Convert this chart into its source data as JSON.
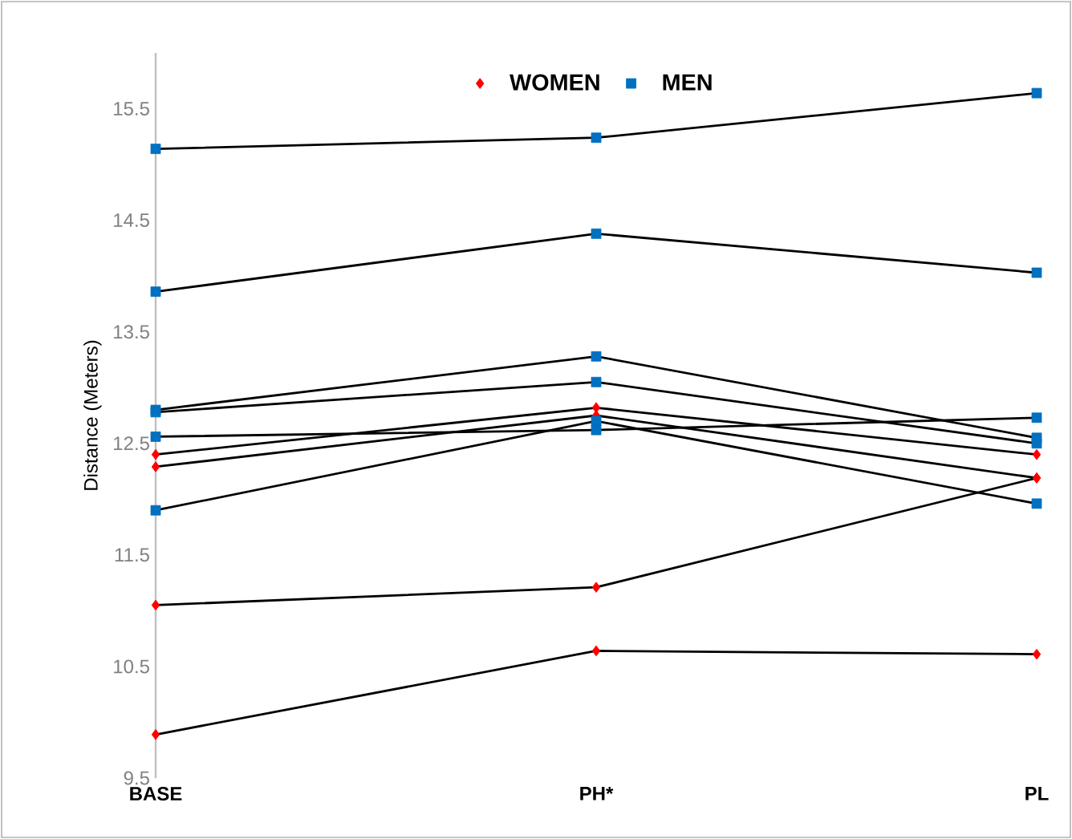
{
  "chart_data": {
    "type": "line",
    "ylabel": "Distance (Meters)",
    "categories": [
      "BASE",
      "PH*",
      "PL"
    ],
    "ylim": [
      9.5,
      16
    ],
    "yticks": [
      9.5,
      10.5,
      11.5,
      12.5,
      13.5,
      14.5,
      15.5
    ],
    "grid": false,
    "legend": "top",
    "series": [
      {
        "name": "WOMEN",
        "color": "#ff0000",
        "marker": "diamond",
        "values": [
          12.4,
          12.82,
          12.4
        ]
      },
      {
        "color": "#ff0000",
        "marker": "diamond",
        "values": [
          12.29,
          12.75,
          12.19
        ]
      },
      {
        "color": "#ff0000",
        "marker": "diamond",
        "values": [
          11.05,
          11.21,
          12.19
        ]
      },
      {
        "color": "#ff0000",
        "marker": "diamond",
        "values": [
          9.89,
          10.64,
          10.61
        ]
      },
      {
        "name": "MEN",
        "color": "#0070c0",
        "marker": "square",
        "values": [
          15.14,
          15.24,
          15.64
        ]
      },
      {
        "color": "#0070c0",
        "marker": "square",
        "values": [
          13.86,
          14.38,
          14.03
        ]
      },
      {
        "color": "#0070c0",
        "marker": "square",
        "values": [
          12.8,
          13.28,
          12.55
        ]
      },
      {
        "color": "#0070c0",
        "marker": "square",
        "values": [
          12.78,
          13.05,
          12.5
        ]
      },
      {
        "color": "#0070c0",
        "marker": "square",
        "values": [
          12.56,
          12.62,
          12.73
        ]
      },
      {
        "color": "#0070c0",
        "marker": "square",
        "values": [
          11.9,
          12.7,
          11.96
        ]
      }
    ]
  }
}
